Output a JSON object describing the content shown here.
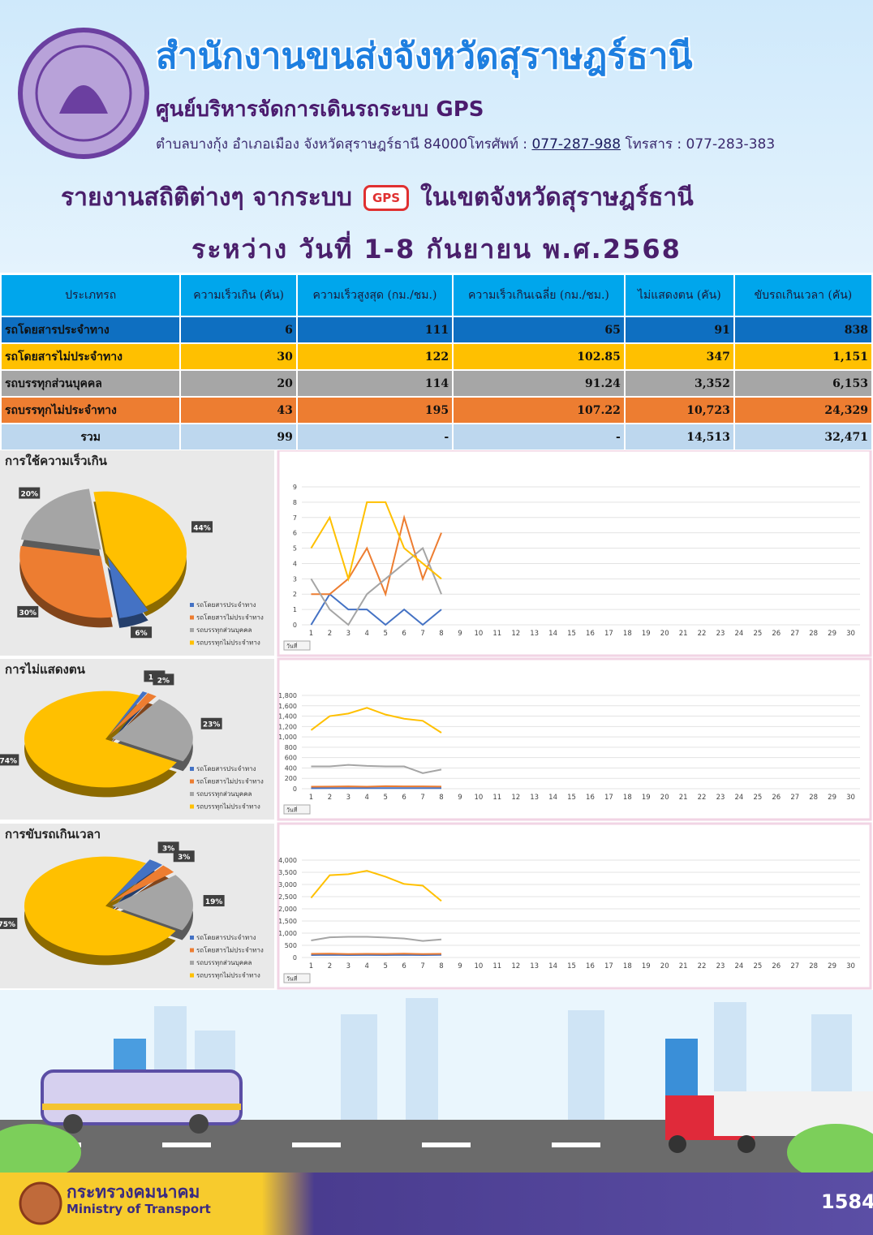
{
  "header": {
    "title": "สำนักงานขนส่งจังหวัดสุราษฎร์ธานี",
    "subtitle": "ศูนย์บริหารจัดการเดินรถระบบ GPS",
    "address": "ตำบลบางกุ้ง อำเภอเมือง จังหวัดสุราษฎร์ธานี 84000โทรศัพท์ :",
    "phone": "077-287-988",
    "fax": "โทรสาร : 077-283-383",
    "report_title": "รายงานสถิติต่างๆ จากระบบ",
    "gps_icon": "GPS",
    "report_title_2": "ในเขตจังหวัดสุราษฎร์ธานี",
    "period": "ระหว่าง วันที่ 1-8 กันยายน พ.ศ.2568"
  },
  "table": {
    "headers": [
      "ประเภทรถ",
      "ความเร็วเกิน (คัน)",
      "ความเร็วสูงสุด (กม./ชม.)",
      "ความเร็วเกินเฉลี่ย (กม./ชม.)",
      "ไม่แสดงตน (คัน)",
      "ขับรถเกินเวลา (คัน)"
    ],
    "rows": [
      [
        "รถโดยสารประจำทาง",
        "6",
        "111",
        "65",
        "91",
        "838"
      ],
      [
        "รถโดยสารไม่ประจำทาง",
        "30",
        "122",
        "102.85",
        "347",
        "1,151"
      ],
      [
        "รถบรรทุกส่วนบุคคล",
        "20",
        "114",
        "91.24",
        "3,352",
        "6,153"
      ],
      [
        "รถบรรทุกไม่ประจำทาง",
        "43",
        "195",
        "107.22",
        "10,723",
        "24,329"
      ],
      [
        "รวม",
        "99",
        "-",
        "-",
        "14,513",
        "32,471"
      ]
    ]
  },
  "chart_data": [
    {
      "type": "pie",
      "title": "การใช้ความเร็วเกิน",
      "categories": [
        "รถโดยสารประจำทาง",
        "รถโดยสารไม่ประจำทาง",
        "รถบรรทุกส่วนบุคคล",
        "รถบรรทุกไม่ประจำทาง"
      ],
      "values": [
        6,
        30,
        20,
        44
      ],
      "value_labels": [
        "6%",
        "30%",
        "20%",
        "44%"
      ],
      "colors": [
        "#4472c4",
        "#ed7d31",
        "#a5a5a5",
        "#ffc000"
      ]
    },
    {
      "type": "line",
      "categories": [
        1,
        2,
        3,
        4,
        5,
        6,
        7,
        8,
        9,
        10,
        11,
        12,
        13,
        14,
        15,
        16,
        17,
        18,
        19,
        20,
        21,
        22,
        23,
        24,
        25,
        26,
        27,
        28,
        29,
        30
      ],
      "ylim": [
        0,
        9
      ],
      "yticks": [
        0,
        1,
        2,
        3,
        4,
        5,
        6,
        7,
        8,
        9
      ],
      "filter_label": "วันที่",
      "grid": true,
      "series": [
        {
          "color": "#4472c4",
          "values": [
            0,
            2,
            1,
            1,
            0,
            1,
            0,
            1,
            null,
            null,
            null,
            null,
            null,
            null,
            null,
            null,
            null,
            null,
            null,
            null,
            null,
            null,
            null,
            null,
            null,
            null,
            null,
            null,
            null,
            null
          ]
        },
        {
          "color": "#ed7d31",
          "values": [
            2,
            2,
            3,
            5,
            2,
            7,
            3,
            6,
            null,
            null,
            null,
            null,
            null,
            null,
            null,
            null,
            null,
            null,
            null,
            null,
            null,
            null,
            null,
            null,
            null,
            null,
            null,
            null,
            null,
            null
          ]
        },
        {
          "color": "#a5a5a5",
          "values": [
            3,
            1,
            0,
            2,
            3,
            4,
            5,
            2,
            null,
            null,
            null,
            null,
            null,
            null,
            null,
            null,
            null,
            null,
            null,
            null,
            null,
            null,
            null,
            null,
            null,
            null,
            null,
            null,
            null,
            null
          ]
        },
        {
          "color": "#ffc000",
          "values": [
            5,
            7,
            3,
            8,
            8,
            5,
            4,
            3,
            null,
            null,
            null,
            null,
            null,
            null,
            null,
            null,
            null,
            null,
            null,
            null,
            null,
            null,
            null,
            null,
            null,
            null,
            null,
            null,
            null,
            null
          ]
        }
      ]
    },
    {
      "type": "pie",
      "title": "การไม่แสดงตน",
      "categories": [
        "รถโดยสารประจำทาง",
        "รถโดยสารไม่ประจำทาง",
        "รถบรรทุกส่วนบุคคล",
        "รถบรรทุกไม่ประจำทาง"
      ],
      "values": [
        1,
        2,
        23,
        74
      ],
      "value_labels": [
        "1%",
        "2%",
        "23%",
        "74%"
      ],
      "colors": [
        "#4472c4",
        "#ed7d31",
        "#a5a5a5",
        "#ffc000"
      ]
    },
    {
      "type": "line",
      "categories": [
        1,
        2,
        3,
        4,
        5,
        6,
        7,
        8,
        9,
        10,
        11,
        12,
        13,
        14,
        15,
        16,
        17,
        18,
        19,
        20,
        21,
        22,
        23,
        24,
        25,
        26,
        27,
        28,
        29,
        30
      ],
      "ylim": [
        0,
        1800
      ],
      "yticks": [
        0,
        200,
        400,
        600,
        800,
        {
          "value": 1000,
          "label": "1,000"
        },
        {
          "value": 1200,
          "label": "1,200"
        },
        {
          "value": 1400,
          "label": "1,400"
        },
        {
          "value": 1600,
          "label": "1,600"
        },
        {
          "value": 1800,
          "label": "1,800"
        }
      ],
      "filter_label": "วันที่",
      "grid": true,
      "series": [
        {
          "color": "#4472c4",
          "values": [
            10,
            12,
            11,
            12,
            11,
            12,
            12,
            11,
            null,
            null,
            null,
            null,
            null,
            null,
            null,
            null,
            null,
            null,
            null,
            null,
            null,
            null,
            null,
            null,
            null,
            null,
            null,
            null,
            null,
            null
          ]
        },
        {
          "color": "#ed7d31",
          "values": [
            40,
            42,
            45,
            40,
            48,
            45,
            45,
            42,
            null,
            null,
            null,
            null,
            null,
            null,
            null,
            null,
            null,
            null,
            null,
            null,
            null,
            null,
            null,
            null,
            null,
            null,
            null,
            null,
            null,
            null
          ]
        },
        {
          "color": "#a5a5a5",
          "values": [
            430,
            430,
            460,
            440,
            430,
            430,
            300,
            370,
            null,
            null,
            null,
            null,
            null,
            null,
            null,
            null,
            null,
            null,
            null,
            null,
            null,
            null,
            null,
            null,
            null,
            null,
            null,
            null,
            null,
            null
          ]
        },
        {
          "color": "#ffc000",
          "values": [
            1130,
            1400,
            1450,
            1560,
            1430,
            1350,
            1310,
            1080,
            null,
            null,
            null,
            null,
            null,
            null,
            null,
            null,
            null,
            null,
            null,
            null,
            null,
            null,
            null,
            null,
            null,
            null,
            null,
            null,
            null,
            null
          ]
        }
      ]
    },
    {
      "type": "pie",
      "title": "การขับรถเกินเวลา",
      "categories": [
        "รถโดยสารประจำทาง",
        "รถโดยสารไม่ประจำทาง",
        "รถบรรทุกส่วนบุคคล",
        "รถบรรทุกไม่ประจำทาง"
      ],
      "values": [
        3,
        3,
        19,
        75
      ],
      "value_labels": [
        "3%",
        "3%",
        "19%",
        "75%"
      ],
      "colors": [
        "#4472c4",
        "#ed7d31",
        "#a5a5a5",
        "#ffc000"
      ]
    },
    {
      "type": "line",
      "categories": [
        1,
        2,
        3,
        4,
        5,
        6,
        7,
        8,
        9,
        10,
        11,
        12,
        13,
        14,
        15,
        16,
        17,
        18,
        19,
        20,
        21,
        22,
        23,
        24,
        25,
        26,
        27,
        28,
        29,
        30
      ],
      "ylim": [
        0,
        4000
      ],
      "yticks": [
        0,
        500,
        {
          "value": 1000,
          "label": "1,000"
        },
        {
          "value": 1500,
          "label": "1,500"
        },
        {
          "value": 2000,
          "label": "2,000"
        },
        {
          "value": 2500,
          "label": "2,500"
        },
        {
          "value": 3000,
          "label": "3,000"
        },
        {
          "value": 3500,
          "label": "3,500"
        },
        {
          "value": 4000,
          "label": "4,000"
        }
      ],
      "filter_label": "วันที่",
      "grid": true,
      "series": [
        {
          "color": "#4472c4",
          "values": [
            100,
            110,
            100,
            105,
            100,
            110,
            100,
            110,
            null,
            null,
            null,
            null,
            null,
            null,
            null,
            null,
            null,
            null,
            null,
            null,
            null,
            null,
            null,
            null,
            null,
            null,
            null,
            null,
            null,
            null
          ]
        },
        {
          "color": "#ed7d31",
          "values": [
            150,
            160,
            140,
            150,
            145,
            160,
            140,
            150,
            null,
            null,
            null,
            null,
            null,
            null,
            null,
            null,
            null,
            null,
            null,
            null,
            null,
            null,
            null,
            null,
            null,
            null,
            null,
            null,
            null,
            null
          ]
        },
        {
          "color": "#a5a5a5",
          "values": [
            700,
            830,
            850,
            850,
            820,
            780,
            680,
            740,
            null,
            null,
            null,
            null,
            null,
            null,
            null,
            null,
            null,
            null,
            null,
            null,
            null,
            null,
            null,
            null,
            null,
            null,
            null,
            null,
            null,
            null
          ]
        },
        {
          "color": "#ffc000",
          "values": [
            2450,
            3380,
            3420,
            3560,
            3320,
            3020,
            2950,
            2320,
            null,
            null,
            null,
            null,
            null,
            null,
            null,
            null,
            null,
            null,
            null,
            null,
            null,
            null,
            null,
            null,
            null,
            null,
            null,
            null,
            null,
            null
          ]
        }
      ]
    }
  ],
  "footer": {
    "ministry_th": "กระทรวงคมนาคม",
    "ministry_en": "Ministry of Transport",
    "hotline": "1584"
  }
}
